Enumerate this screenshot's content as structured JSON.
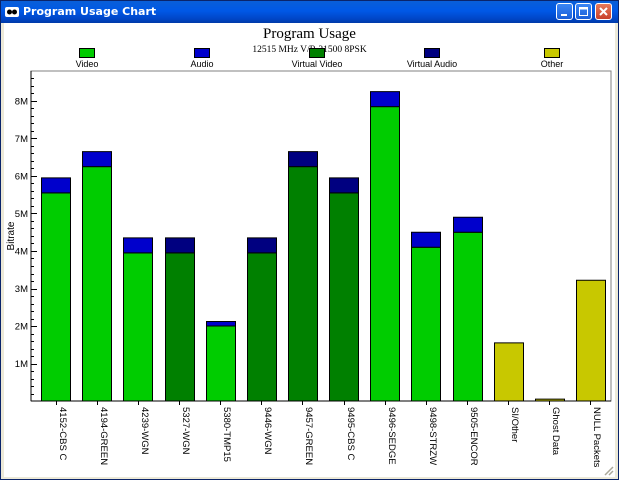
{
  "window": {
    "title": "Program Usage Chart",
    "icon": "app-icon",
    "controls": [
      "minimize-icon",
      "maximize-icon",
      "close-icon"
    ]
  },
  "colors": {
    "video": "#00cc00",
    "audio": "#0000cc",
    "virtual_video": "#008000",
    "virtual_audio": "#000080",
    "other": "#c8c800",
    "titlebar": "#0058e6"
  },
  "chart_data": {
    "type": "bar",
    "title": "Program Usage",
    "subtitle": "12515 MHz V/R 21500 8PSK",
    "ylabel": "Bitrate",
    "xlabel": "",
    "ylim": [
      0,
      8.8
    ],
    "yticks": [
      "1M",
      "2M",
      "3M",
      "4M",
      "5M",
      "6M",
      "7M",
      "8M"
    ],
    "stacked": true,
    "grid": false,
    "legend_position": "top",
    "legend": [
      {
        "name": "Video",
        "color_key": "video"
      },
      {
        "name": "Audio",
        "color_key": "audio"
      },
      {
        "name": "Virtual Video",
        "color_key": "virtual_video"
      },
      {
        "name": "Virtual Audio",
        "color_key": "virtual_audio"
      },
      {
        "name": "Other",
        "color_key": "other"
      }
    ],
    "categories": [
      "4152-CBS C",
      "4194-GREEN",
      "4239-WGN",
      "5327-WGN",
      "5380-TMP15",
      "9446-WGN",
      "9457-GREEN",
      "9495-CBS C",
      "9496-SEDGE",
      "9498-STRZW",
      "9505-ENCOR",
      "SI/Other",
      "Ghost Data",
      "NULL Packets"
    ],
    "series": [
      {
        "name": "Video",
        "values": [
          5.55,
          6.25,
          3.95,
          0,
          2.0,
          0,
          0,
          0,
          7.85,
          4.1,
          4.5,
          0,
          0,
          0
        ]
      },
      {
        "name": "Audio",
        "values": [
          0.4,
          0.4,
          0.4,
          0,
          0.12,
          0,
          0,
          0,
          0.4,
          0.4,
          0.4,
          0,
          0,
          0
        ]
      },
      {
        "name": "Virtual Video",
        "values": [
          0,
          0,
          0,
          3.95,
          0,
          3.95,
          6.25,
          5.55,
          0,
          0,
          0,
          0,
          0,
          0
        ]
      },
      {
        "name": "Virtual Audio",
        "values": [
          0,
          0,
          0,
          0.4,
          0,
          0.4,
          0.4,
          0.4,
          0,
          0,
          0,
          0,
          0,
          0
        ]
      },
      {
        "name": "Other",
        "values": [
          0,
          0,
          0,
          0,
          0,
          0,
          0,
          0,
          0,
          0,
          0,
          1.55,
          0.05,
          3.22
        ]
      }
    ]
  }
}
